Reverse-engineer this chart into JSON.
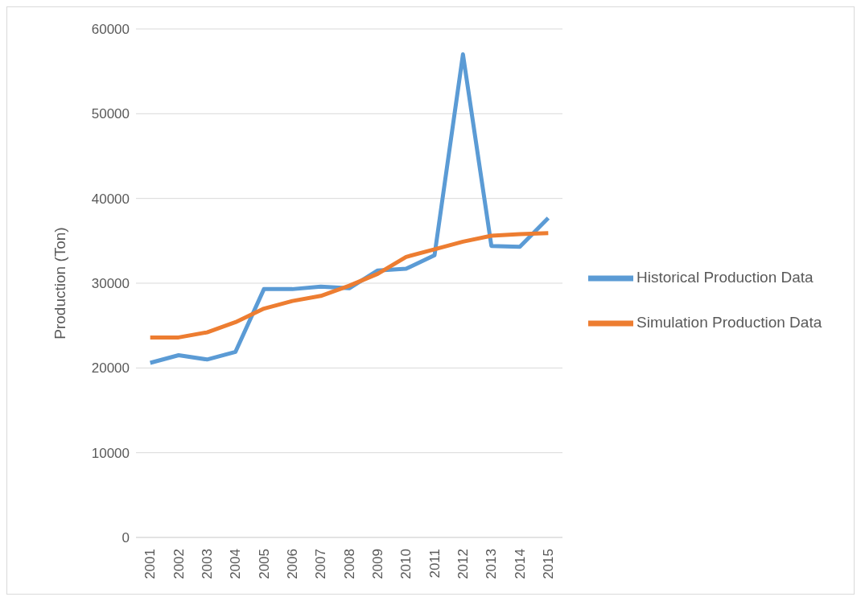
{
  "chart_data": {
    "type": "line",
    "ylabel": "Production (Ton)",
    "categories": [
      "2001",
      "2002",
      "2003",
      "2004",
      "2005",
      "2006",
      "2007",
      "2008",
      "2009",
      "2010",
      "2011",
      "2012",
      "2013",
      "2014",
      "2015"
    ],
    "series": [
      {
        "name": "Historical Production Data",
        "color": "#5b9bd5",
        "values": [
          20600,
          21500,
          21000,
          21900,
          29300,
          29300,
          29600,
          29400,
          31500,
          31700,
          33300,
          57000,
          34400,
          34300,
          37700
        ]
      },
      {
        "name": "Simulation Production Data",
        "color": "#ed7d31",
        "values": [
          23600,
          23600,
          24200,
          25400,
          27000,
          27900,
          28500,
          29700,
          31100,
          33100,
          34000,
          34900,
          35600,
          35800,
          35900
        ]
      }
    ],
    "ylim": [
      0,
      60000
    ],
    "yticks": [
      0,
      10000,
      20000,
      30000,
      40000,
      50000,
      60000
    ],
    "grid": "y",
    "legend": "right",
    "marker": "none",
    "line_style": "solid"
  }
}
